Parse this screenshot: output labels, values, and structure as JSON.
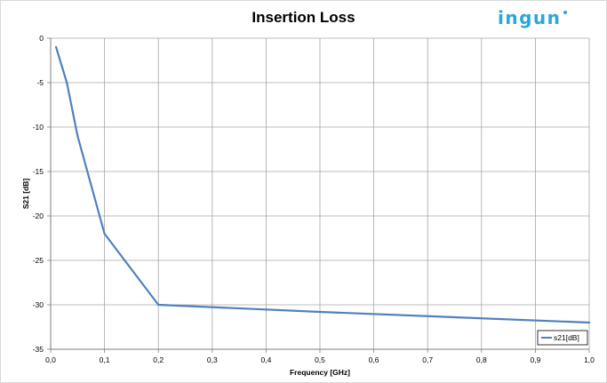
{
  "brand": {
    "logo_text": "ingun",
    "logo_color": "#2aa7d8"
  },
  "chart_data": {
    "type": "line",
    "title": "Insertion Loss",
    "xlabel": "Frequency [GHz]",
    "ylabel": "S21 [dB]",
    "xlim": [
      0,
      1.0
    ],
    "ylim": [
      -35,
      0
    ],
    "x_ticks": [
      "0,0",
      "0,1",
      "0,2",
      "0,3",
      "0,4",
      "0,5",
      "0,6",
      "0,7",
      "0,8",
      "0,9",
      "1,0"
    ],
    "y_ticks": [
      "0",
      "-5",
      "-10",
      "-15",
      "-20",
      "-25",
      "-30",
      "-35"
    ],
    "grid": true,
    "legend_position": "bottom-right",
    "series": [
      {
        "name": "s21[dB]",
        "color": "#4f81bd",
        "x": [
          0.01,
          0.03,
          0.05,
          0.1,
          0.2,
          0.5,
          1.0
        ],
        "y": [
          -1,
          -5,
          -11,
          -22,
          -30,
          -30.8,
          -32
        ]
      }
    ]
  }
}
